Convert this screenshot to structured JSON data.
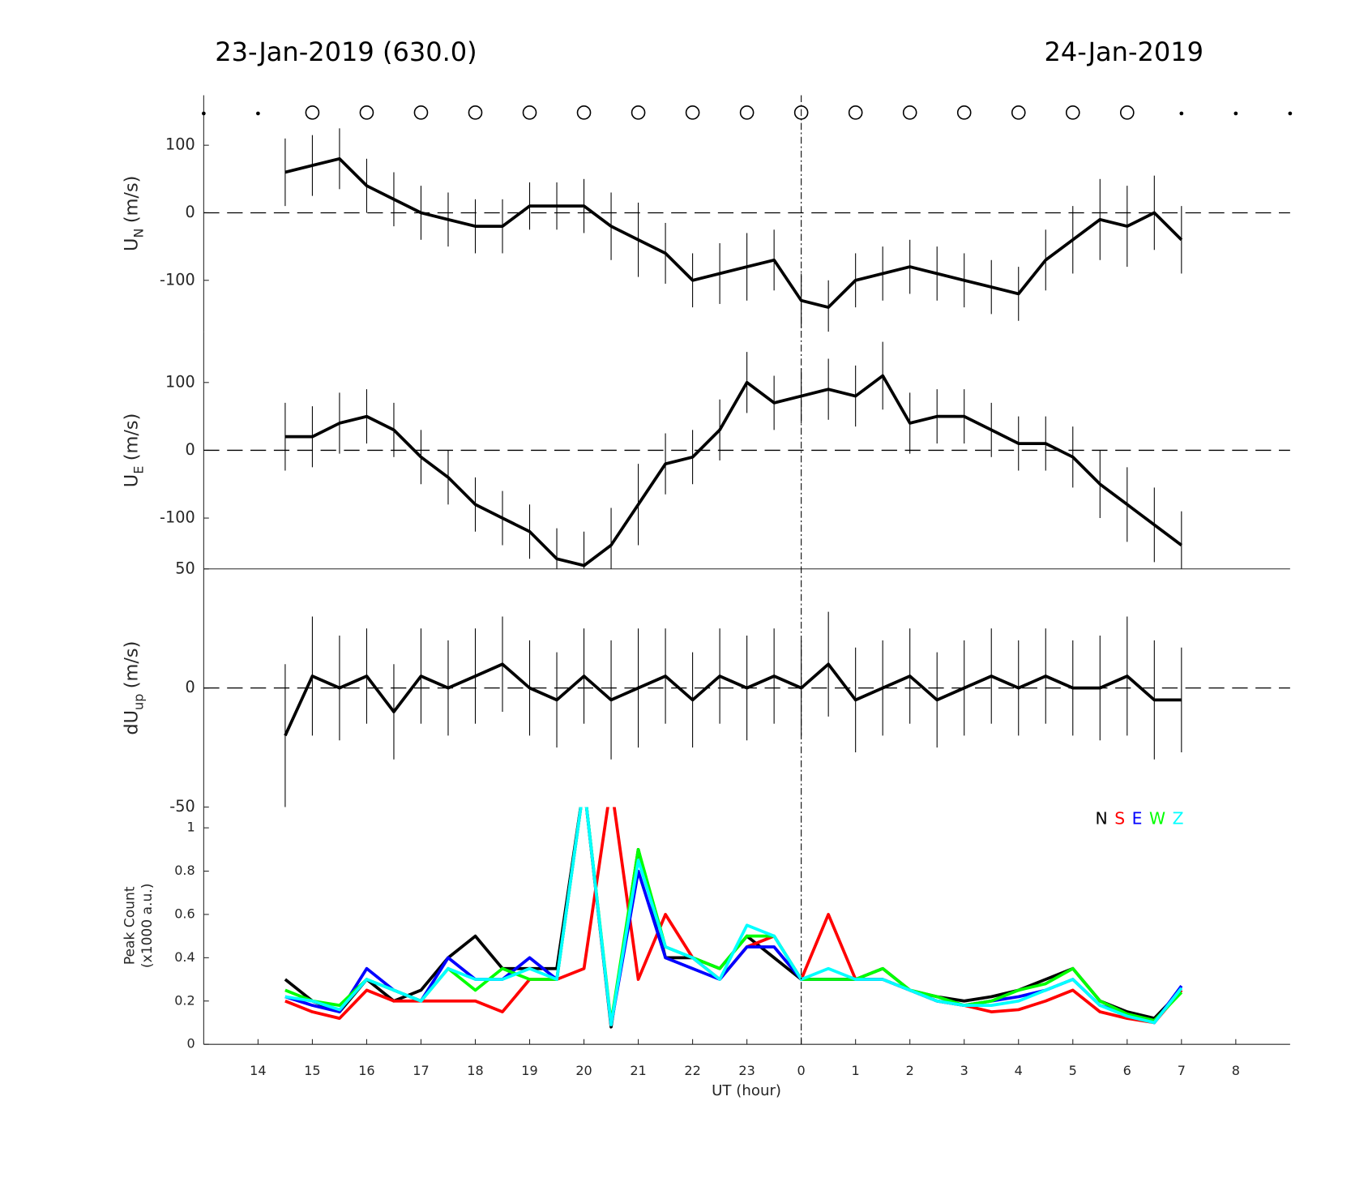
{
  "header": {
    "title_left": "23-Jan-2019 (630.0)",
    "title_right": "24-Jan-2019"
  },
  "x_axis": {
    "xlim": [
      13,
      33
    ],
    "xlabel": "UT (hour)",
    "vline_x": 24,
    "xticks": [
      14,
      15,
      16,
      17,
      18,
      19,
      20,
      21,
      22,
      23,
      {
        "value": 24,
        "label": "0"
      },
      {
        "value": 25,
        "label": "1"
      },
      {
        "value": 26,
        "label": "2"
      },
      {
        "value": 27,
        "label": "3"
      },
      {
        "value": 28,
        "label": "4"
      },
      {
        "value": 29,
        "label": "5"
      },
      {
        "value": 30,
        "label": "6"
      },
      {
        "value": 31,
        "label": "7"
      },
      {
        "value": 32,
        "label": "8"
      }
    ]
  },
  "markers": {
    "circles_x": [
      15,
      16,
      17,
      18,
      19,
      20,
      21,
      22,
      23,
      24,
      25,
      26,
      27,
      28,
      29,
      30
    ],
    "dots_x": [
      13,
      14,
      31,
      32,
      33
    ]
  },
  "chart_data": [
    {
      "type": "line",
      "ylabel": "U",
      "ylabel_sub": "N",
      "ylabel_unit": "(m/s)",
      "ylim": [
        -176,
        174
      ],
      "yticks": [
        -100,
        0,
        100
      ],
      "zero_line": true,
      "x": [
        14.5,
        15,
        15.5,
        16,
        16.5,
        17,
        17.5,
        18,
        18.5,
        19,
        19.5,
        20,
        20.5,
        21,
        21.5,
        22,
        22.5,
        23,
        23.5,
        24,
        24.5,
        25,
        25.5,
        26,
        26.5,
        27,
        27.5,
        28,
        28.5,
        29,
        29.5,
        30,
        30.5,
        31
      ],
      "series": [
        {
          "color": "#000000",
          "values": [
            60,
            70,
            80,
            40,
            20,
            0,
            -10,
            -20,
            -20,
            10,
            10,
            10,
            -20,
            -40,
            -60,
            -100,
            -90,
            -80,
            -70,
            -130,
            -140,
            -100,
            -90,
            -80,
            -90,
            -100,
            -110,
            -120,
            -70,
            -40,
            -10,
            -20,
            0,
            -40
          ],
          "errors": [
            50,
            45,
            45,
            40,
            40,
            40,
            40,
            40,
            40,
            35,
            35,
            40,
            50,
            55,
            45,
            40,
            45,
            50,
            45,
            40,
            40,
            40,
            40,
            40,
            40,
            40,
            40,
            40,
            45,
            50,
            60,
            60,
            55,
            50
          ]
        }
      ]
    },
    {
      "type": "line",
      "ylabel": "U",
      "ylabel_sub": "E",
      "ylabel_unit": "(m/s)",
      "ylim": [
        -175,
        175
      ],
      "yticks": [
        -100,
        0,
        100
      ],
      "zero_line": true,
      "x": [
        14.5,
        15,
        15.5,
        16,
        16.5,
        17,
        17.5,
        18,
        18.5,
        19,
        19.5,
        20,
        20.5,
        21,
        21.5,
        22,
        22.5,
        23,
        23.5,
        24,
        24.5,
        25,
        25.5,
        26,
        26.5,
        27,
        27.5,
        28,
        28.5,
        29,
        29.5,
        30,
        30.5,
        31
      ],
      "series": [
        {
          "color": "#000000",
          "values": [
            20,
            20,
            40,
            50,
            30,
            -10,
            -40,
            -80,
            -100,
            -120,
            -160,
            -170,
            -140,
            -80,
            -20,
            -10,
            30,
            100,
            70,
            80,
            90,
            80,
            110,
            40,
            50,
            50,
            30,
            10,
            10,
            -10,
            -50,
            -80,
            -110,
            -140
          ],
          "errors": [
            50,
            45,
            45,
            40,
            40,
            40,
            40,
            40,
            40,
            40,
            45,
            50,
            55,
            60,
            45,
            40,
            45,
            45,
            40,
            40,
            45,
            45,
            50,
            45,
            40,
            40,
            40,
            40,
            40,
            45,
            50,
            55,
            55,
            50
          ]
        }
      ]
    },
    {
      "type": "line",
      "ylabel": "dU",
      "ylabel_sub": "up",
      "ylabel_unit": "(m/s)",
      "ylim": [
        -50,
        50
      ],
      "yticks": [
        -50,
        0,
        50
      ],
      "zero_line": true,
      "x": [
        14.5,
        15,
        15.5,
        16,
        16.5,
        17,
        17.5,
        18,
        18.5,
        19,
        19.5,
        20,
        20.5,
        21,
        21.5,
        22,
        22.5,
        23,
        23.5,
        24,
        24.5,
        25,
        25.5,
        26,
        26.5,
        27,
        27.5,
        28,
        28.5,
        29,
        29.5,
        30,
        30.5,
        31
      ],
      "series": [
        {
          "color": "#000000",
          "values": [
            -20,
            5,
            0,
            5,
            -10,
            5,
            0,
            5,
            10,
            0,
            -5,
            5,
            -5,
            0,
            5,
            -5,
            5,
            0,
            5,
            0,
            10,
            -5,
            0,
            5,
            -5,
            0,
            5,
            0,
            5,
            0,
            0,
            5,
            -5,
            -5
          ],
          "errors": [
            30,
            25,
            22,
            20,
            20,
            20,
            20,
            20,
            20,
            20,
            20,
            20,
            25,
            25,
            20,
            20,
            20,
            22,
            20,
            20,
            22,
            22,
            20,
            20,
            20,
            20,
            20,
            20,
            20,
            20,
            22,
            25,
            25,
            22
          ]
        }
      ]
    },
    {
      "type": "line",
      "ylabel": "Peak Count",
      "ylabel_unit": "(x1000 a.u.)",
      "ylim": [
        0,
        1.096
      ],
      "yticks": [
        0,
        0.2,
        0.4,
        0.6,
        0.8,
        1
      ],
      "legend": "upper right",
      "x": [
        14.5,
        15,
        15.5,
        16,
        16.5,
        17,
        17.5,
        18,
        18.5,
        19,
        19.5,
        20,
        20.5,
        21,
        21.5,
        22,
        22.5,
        23,
        23.5,
        24,
        24.5,
        25,
        25.5,
        26,
        26.5,
        27,
        27.5,
        28,
        28.5,
        29,
        29.5,
        30,
        30.5,
        31
      ],
      "series": [
        {
          "name": "N",
          "color": "#000000",
          "values": [
            0.3,
            0.2,
            0.15,
            0.3,
            0.2,
            0.25,
            0.4,
            0.5,
            0.35,
            0.35,
            0.35,
            1.2,
            0.08,
            0.9,
            0.4,
            0.4,
            0.35,
            0.5,
            0.4,
            0.3,
            0.3,
            0.3,
            0.35,
            0.25,
            0.22,
            0.2,
            0.22,
            0.25,
            0.3,
            0.35,
            0.2,
            0.15,
            0.12,
            0.25
          ]
        },
        {
          "name": "S",
          "color": "#ff0000",
          "values": [
            0.2,
            0.15,
            0.12,
            0.25,
            0.2,
            0.2,
            0.2,
            0.2,
            0.15,
            0.3,
            0.3,
            0.35,
            1.2,
            0.3,
            0.6,
            0.4,
            0.3,
            0.45,
            0.5,
            0.3,
            0.6,
            0.3,
            0.3,
            0.25,
            0.2,
            0.18,
            0.15,
            0.16,
            0.2,
            0.25,
            0.15,
            0.12,
            0.1,
            0.25
          ]
        },
        {
          "name": "E",
          "color": "#0000ff",
          "values": [
            0.22,
            0.18,
            0.15,
            0.35,
            0.25,
            0.2,
            0.4,
            0.3,
            0.3,
            0.4,
            0.3,
            1.2,
            0.09,
            0.8,
            0.4,
            0.35,
            0.3,
            0.45,
            0.45,
            0.3,
            0.3,
            0.3,
            0.3,
            0.25,
            0.2,
            0.18,
            0.2,
            0.22,
            0.25,
            0.3,
            0.18,
            0.14,
            0.1,
            0.27
          ]
        },
        {
          "name": "W",
          "color": "#00ff00",
          "values": [
            0.25,
            0.2,
            0.18,
            0.3,
            0.25,
            0.2,
            0.35,
            0.25,
            0.35,
            0.3,
            0.3,
            1.2,
            0.1,
            0.9,
            0.45,
            0.4,
            0.35,
            0.5,
            0.5,
            0.3,
            0.3,
            0.3,
            0.35,
            0.25,
            0.22,
            0.18,
            0.2,
            0.25,
            0.28,
            0.35,
            0.2,
            0.14,
            0.11,
            0.24
          ]
        },
        {
          "name": "Z",
          "color": "#00ffff",
          "values": [
            0.22,
            0.2,
            0.16,
            0.3,
            0.25,
            0.2,
            0.35,
            0.3,
            0.3,
            0.35,
            0.3,
            1.2,
            0.09,
            0.85,
            0.45,
            0.4,
            0.3,
            0.55,
            0.5,
            0.3,
            0.35,
            0.3,
            0.3,
            0.25,
            0.2,
            0.18,
            0.18,
            0.2,
            0.25,
            0.3,
            0.18,
            0.13,
            0.1,
            0.26
          ]
        }
      ]
    }
  ]
}
